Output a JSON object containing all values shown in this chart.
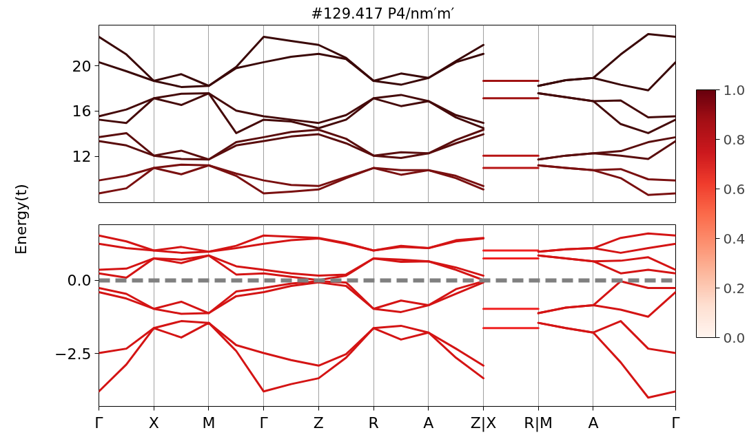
{
  "chart_data": [
    {
      "type": "line",
      "title": "#129.417   P4/nm′m′",
      "ylabel": "Energy(t)",
      "categories": [
        null,
        null,
        null,
        null,
        null,
        null,
        null,
        null,
        null,
        null,
        null,
        null,
        null,
        null,
        null,
        null,
        null,
        null,
        null,
        null,
        null,
        null
      ],
      "series": [
        {
          "color": "#7a1010",
          "values": [
            8.72,
            9.17,
            10.97,
            10.41,
            11.2,
            10.27,
            8.72,
            8.88,
            9.07,
            10.07,
            10.97,
            10.37,
            10.77,
            10.07,
            9.07,
            null,
            null,
            null,
            null,
            null,
            null,
            null
          ]
        },
        {
          "color": "#7a1010",
          "values": [
            9.87,
            10.27,
            10.97,
            11.26,
            11.2,
            10.47,
            9.87,
            9.47,
            9.37,
            10.17,
            10.97,
            10.77,
            10.77,
            10.27,
            9.37,
            null,
            null,
            null,
            null,
            null,
            null,
            null
          ]
        },
        {
          "color": "#5a0d0d",
          "values": [
            13.35,
            12.96,
            12.06,
            11.76,
            11.72,
            12.96,
            13.35,
            13.75,
            13.95,
            13.15,
            12.06,
            11.86,
            12.26,
            13.15,
            13.95,
            null,
            null,
            null,
            null,
            null,
            null,
            null
          ]
        },
        {
          "color": "#5a0d0d",
          "values": [
            13.69,
            14.05,
            12.06,
            12.5,
            11.72,
            13.25,
            13.69,
            14.15,
            14.35,
            13.55,
            12.06,
            12.36,
            12.26,
            13.45,
            14.35,
            null,
            null,
            null,
            null,
            null,
            null,
            null
          ]
        },
        {
          "color": "#450a0a",
          "values": [
            15.24,
            14.95,
            17.13,
            16.54,
            17.57,
            14.05,
            15.24,
            15.08,
            14.49,
            15.24,
            17.13,
            16.44,
            16.88,
            15.44,
            14.49,
            null,
            null,
            null,
            null,
            null,
            null,
            null
          ]
        },
        {
          "color": "#450a0a",
          "values": [
            15.54,
            16.14,
            17.13,
            17.53,
            17.57,
            16.04,
            15.54,
            15.24,
            14.95,
            15.64,
            17.13,
            17.43,
            16.88,
            15.64,
            14.95,
            null,
            null,
            null,
            null,
            null,
            null,
            null
          ]
        },
        {
          "color": "#3a0808",
          "values": [
            20.32,
            19.52,
            18.67,
            18.13,
            18.23,
            19.8,
            20.32,
            20.8,
            21.06,
            20.6,
            18.67,
            18.33,
            18.93,
            20.32,
            21.06,
            null,
            null,
            null,
            null,
            null,
            null,
            null
          ]
        },
        {
          "color": "#3a0808",
          "values": [
            22.57,
            21.01,
            18.67,
            19.26,
            18.23,
            19.9,
            22.57,
            22.2,
            21.85,
            20.7,
            18.67,
            19.32,
            18.93,
            20.42,
            21.85,
            null,
            null,
            null,
            null,
            null,
            null,
            null
          ]
        },
        {
          "color": "#b81414",
          "values": [
            null,
            null,
            null,
            null,
            null,
            null,
            null,
            null,
            null,
            null,
            null,
            null,
            null,
            null,
            10.97,
            10.97,
            10.97,
            null,
            null,
            null,
            null,
            null
          ]
        },
        {
          "color": "#b81414",
          "values": [
            null,
            null,
            null,
            null,
            null,
            null,
            null,
            null,
            null,
            null,
            null,
            null,
            null,
            null,
            12.06,
            12.06,
            12.06,
            null,
            null,
            null,
            null,
            null
          ]
        },
        {
          "color": "#a01212",
          "values": [
            null,
            null,
            null,
            null,
            null,
            null,
            null,
            null,
            null,
            null,
            null,
            null,
            null,
            null,
            17.13,
            17.13,
            17.13,
            null,
            null,
            null,
            null,
            null
          ]
        },
        {
          "color": "#a01212",
          "values": [
            null,
            null,
            null,
            null,
            null,
            null,
            null,
            null,
            null,
            null,
            null,
            null,
            null,
            null,
            18.67,
            18.67,
            18.67,
            null,
            null,
            null,
            null,
            null
          ]
        },
        {
          "color": "#7a1010",
          "values": [
            null,
            null,
            null,
            null,
            null,
            null,
            null,
            null,
            null,
            null,
            null,
            null,
            null,
            null,
            null,
            null,
            11.2,
            10.97,
            10.77,
            10.07,
            8.58,
            8.72
          ]
        },
        {
          "color": "#7a1010",
          "values": [
            null,
            null,
            null,
            null,
            null,
            null,
            null,
            null,
            null,
            null,
            null,
            null,
            null,
            null,
            null,
            null,
            11.2,
            10.97,
            10.77,
            10.87,
            9.97,
            9.87
          ]
        },
        {
          "color": "#5a0d0d",
          "values": [
            null,
            null,
            null,
            null,
            null,
            null,
            null,
            null,
            null,
            null,
            null,
            null,
            null,
            null,
            null,
            null,
            11.72,
            12.06,
            12.26,
            12.06,
            11.76,
            13.35
          ]
        },
        {
          "color": "#5a0d0d",
          "values": [
            null,
            null,
            null,
            null,
            null,
            null,
            null,
            null,
            null,
            null,
            null,
            null,
            null,
            null,
            null,
            null,
            11.72,
            12.06,
            12.26,
            12.46,
            13.25,
            13.69
          ]
        },
        {
          "color": "#450a0a",
          "values": [
            null,
            null,
            null,
            null,
            null,
            null,
            null,
            null,
            null,
            null,
            null,
            null,
            null,
            null,
            null,
            null,
            17.57,
            17.23,
            16.88,
            14.85,
            14.05,
            15.24
          ]
        },
        {
          "color": "#450a0a",
          "values": [
            null,
            null,
            null,
            null,
            null,
            null,
            null,
            null,
            null,
            null,
            null,
            null,
            null,
            null,
            null,
            null,
            17.57,
            17.23,
            16.88,
            16.94,
            15.44,
            15.54
          ]
        },
        {
          "color": "#3a0808",
          "values": [
            null,
            null,
            null,
            null,
            null,
            null,
            null,
            null,
            null,
            null,
            null,
            null,
            null,
            null,
            null,
            null,
            18.23,
            18.73,
            18.93,
            18.33,
            17.83,
            20.32
          ]
        },
        {
          "color": "#3a0808",
          "values": [
            null,
            null,
            null,
            null,
            null,
            null,
            null,
            null,
            null,
            null,
            null,
            null,
            null,
            null,
            null,
            null,
            18.23,
            18.73,
            18.93,
            21.01,
            22.81,
            22.57
          ]
        }
      ],
      "ylim": [
        7.9,
        23.6
      ],
      "yticks": [
        12,
        16,
        20
      ],
      "grid": "x",
      "tick_labels": "y",
      "clim": [
        0,
        1
      ],
      "cticks": [
        {
          "value": 0,
          "label": "0.0"
        },
        {
          "value": 0.2,
          "label": "0.2"
        },
        {
          "value": 0.4,
          "label": "0.4"
        },
        {
          "value": 0.6,
          "label": "0.6"
        },
        {
          "value": 0.8,
          "label": "0.8"
        },
        {
          "value": 1,
          "label": "1.0"
        }
      ]
    },
    {
      "type": "line",
      "categories": [
        "Γ",
        null,
        "X",
        null,
        "M",
        null,
        "Γ",
        null,
        "Z",
        null,
        "R",
        null,
        "A",
        null,
        "Z|X",
        null,
        "R|M",
        null,
        "A",
        null,
        null,
        "Γ"
      ],
      "series": [
        {
          "color": "#d41414",
          "values": [
            -3.79,
            -2.87,
            -1.63,
            -1.95,
            -1.45,
            -2.41,
            -3.79,
            -3.54,
            -3.34,
            -2.64,
            -1.63,
            -2.02,
            -1.78,
            -2.64,
            -3.34,
            null,
            null,
            null,
            null,
            null,
            null,
            null
          ]
        },
        {
          "color": "#d41414",
          "values": [
            -2.48,
            -2.33,
            -1.63,
            -1.39,
            -1.45,
            -2.21,
            -2.48,
            -2.72,
            -2.91,
            -2.52,
            -1.63,
            -1.55,
            -1.78,
            -2.33,
            -2.91,
            null,
            null,
            null,
            null,
            null,
            null,
            null
          ]
        },
        {
          "color": "#d41414",
          "values": [
            -0.4,
            -0.62,
            -0.97,
            -1.14,
            -1.12,
            -0.54,
            -0.4,
            -0.19,
            -0.07,
            -0.19,
            -0.97,
            -1.08,
            -0.85,
            -0.46,
            -0.07,
            null,
            null,
            null,
            null,
            null,
            null,
            null
          ]
        },
        {
          "color": "#d41414",
          "values": [
            -0.26,
            -0.46,
            -0.97,
            -0.73,
            -1.12,
            -0.38,
            -0.26,
            -0.11,
            -0.03,
            -0.07,
            -0.97,
            -0.69,
            -0.85,
            -0.3,
            -0.03,
            null,
            null,
            null,
            null,
            null,
            null,
            null
          ]
        },
        {
          "color": "#d41414",
          "values": [
            0.24,
            0.09,
            0.75,
            0.59,
            0.85,
            0.2,
            0.24,
            0.12,
            0.01,
            0.16,
            0.75,
            0.63,
            0.65,
            0.36,
            0.01,
            null,
            null,
            null,
            null,
            null,
            null,
            null
          ]
        },
        {
          "color": "#d41414",
          "values": [
            0.36,
            0.4,
            0.75,
            0.71,
            0.85,
            0.48,
            0.36,
            0.24,
            0.16,
            0.2,
            0.75,
            0.71,
            0.65,
            0.44,
            0.16,
            null,
            null,
            null,
            null,
            null,
            null,
            null
          ]
        },
        {
          "color": "#d41414",
          "values": [
            1.25,
            1.1,
            1.02,
            0.94,
            0.98,
            1.1,
            1.25,
            1.37,
            1.43,
            1.25,
            1.02,
            1.14,
            1.1,
            1.33,
            1.43,
            null,
            null,
            null,
            null,
            null,
            null,
            null
          ]
        },
        {
          "color": "#d41414",
          "values": [
            1.53,
            1.33,
            1.02,
            1.14,
            0.98,
            1.18,
            1.53,
            1.49,
            1.45,
            1.27,
            1.02,
            1.18,
            1.1,
            1.37,
            1.45,
            null,
            null,
            null,
            null,
            null,
            null,
            null
          ]
        },
        {
          "color": "#f02020",
          "values": [
            null,
            null,
            null,
            null,
            null,
            null,
            null,
            null,
            null,
            null,
            null,
            null,
            null,
            null,
            -1.63,
            -1.63,
            -1.63,
            null,
            null,
            null,
            null,
            null
          ]
        },
        {
          "color": "#f02020",
          "values": [
            null,
            null,
            null,
            null,
            null,
            null,
            null,
            null,
            null,
            null,
            null,
            null,
            null,
            null,
            -0.97,
            -0.97,
            -0.97,
            null,
            null,
            null,
            null,
            null
          ]
        },
        {
          "color": "#f02020",
          "values": [
            null,
            null,
            null,
            null,
            null,
            null,
            null,
            null,
            null,
            null,
            null,
            null,
            null,
            null,
            0.75,
            0.75,
            0.75,
            null,
            null,
            null,
            null,
            null
          ]
        },
        {
          "color": "#f02020",
          "values": [
            null,
            null,
            null,
            null,
            null,
            null,
            null,
            null,
            null,
            null,
            null,
            null,
            null,
            null,
            1.02,
            1.02,
            1.02,
            null,
            null,
            null,
            null,
            null
          ]
        },
        {
          "color": "#d41414",
          "values": [
            null,
            null,
            null,
            null,
            null,
            null,
            null,
            null,
            null,
            null,
            null,
            null,
            null,
            null,
            null,
            null,
            -1.45,
            -1.63,
            -1.78,
            -2.8,
            -4.0,
            -3.79
          ]
        },
        {
          "color": "#d41414",
          "values": [
            null,
            null,
            null,
            null,
            null,
            null,
            null,
            null,
            null,
            null,
            null,
            null,
            null,
            null,
            null,
            null,
            -1.45,
            -1.63,
            -1.78,
            -1.39,
            -2.33,
            -2.48
          ]
        },
        {
          "color": "#d41414",
          "values": [
            null,
            null,
            null,
            null,
            null,
            null,
            null,
            null,
            null,
            null,
            null,
            null,
            null,
            null,
            null,
            null,
            -1.12,
            -0.93,
            -0.85,
            -1.0,
            -1.24,
            -0.4
          ]
        },
        {
          "color": "#d41414",
          "values": [
            null,
            null,
            null,
            null,
            null,
            null,
            null,
            null,
            null,
            null,
            null,
            null,
            null,
            null,
            null,
            null,
            -1.12,
            -0.93,
            -0.85,
            -0.03,
            -0.26,
            -0.26
          ]
        },
        {
          "color": "#d41414",
          "values": [
            null,
            null,
            null,
            null,
            null,
            null,
            null,
            null,
            null,
            null,
            null,
            null,
            null,
            null,
            null,
            null,
            0.85,
            0.75,
            0.65,
            0.24,
            0.36,
            0.24
          ]
        },
        {
          "color": "#d41414",
          "values": [
            null,
            null,
            null,
            null,
            null,
            null,
            null,
            null,
            null,
            null,
            null,
            null,
            null,
            null,
            null,
            null,
            0.85,
            0.75,
            0.65,
            0.67,
            0.79,
            0.36
          ]
        },
        {
          "color": "#d41414",
          "values": [
            null,
            null,
            null,
            null,
            null,
            null,
            null,
            null,
            null,
            null,
            null,
            null,
            null,
            null,
            null,
            null,
            0.98,
            1.06,
            1.1,
            0.94,
            1.1,
            1.25
          ]
        },
        {
          "color": "#d41414",
          "values": [
            null,
            null,
            null,
            null,
            null,
            null,
            null,
            null,
            null,
            null,
            null,
            null,
            null,
            null,
            null,
            null,
            0.98,
            1.06,
            1.1,
            1.45,
            1.6,
            1.53
          ]
        }
      ],
      "ylim": [
        -4.3,
        1.9
      ],
      "yticks": [
        {
          "value": -2.5,
          "label": "−2.5"
        },
        {
          "value": 0,
          "label": "0.0"
        }
      ],
      "grid": "x",
      "ref_lines": [
        {
          "axis": "y",
          "value": 0,
          "color": "#808080",
          "line_style": "dashed"
        }
      ]
    }
  ]
}
